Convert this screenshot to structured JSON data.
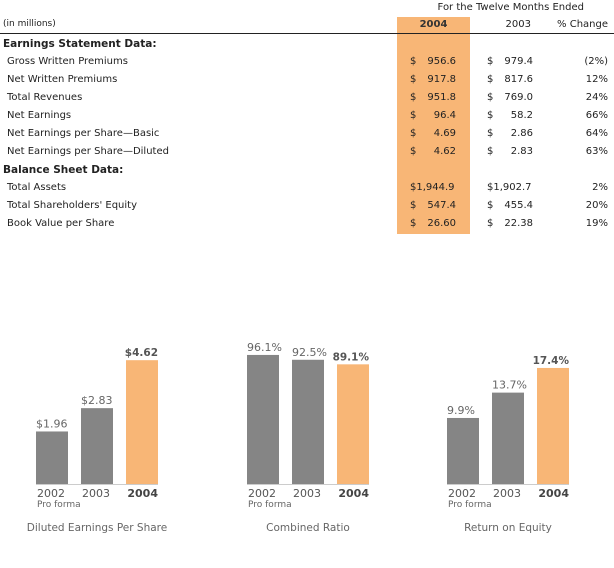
{
  "table": {
    "period_header": "For the Twelve Months Ended",
    "units_label": "(in millions)",
    "columns": {
      "y2004": "2004",
      "y2003": "2003",
      "change": "% Change"
    },
    "highlight_color": "#F8B676",
    "sections": [
      {
        "title": "Earnings Statement Data:",
        "rows": [
          {
            "label": "Gross Written Premiums",
            "v2004_cur": "$",
            "v2004": "956.6",
            "v2003_cur": "$",
            "v2003": "979.4",
            "change": "(2%)"
          },
          {
            "label": "Net Written Premiums",
            "v2004_cur": "$",
            "v2004": "917.8",
            "v2003_cur": "$",
            "v2003": "817.6",
            "change": "12%"
          },
          {
            "label": "Total Revenues",
            "v2004_cur": "$",
            "v2004": "951.8",
            "v2003_cur": "$",
            "v2003": "769.0",
            "change": "24%"
          },
          {
            "label": "Net Earnings",
            "v2004_cur": "$",
            "v2004": "96.4",
            "v2003_cur": "$",
            "v2003": "58.2",
            "change": "66%"
          },
          {
            "label": "Net Earnings per Share—Basic",
            "v2004_cur": "$",
            "v2004": "4.69",
            "v2003_cur": "$",
            "v2003": "2.86",
            "change": "64%"
          },
          {
            "label": "Net Earnings per Share—Diluted",
            "v2004_cur": "$",
            "v2004": "4.62",
            "v2003_cur": "$",
            "v2003": "2.83",
            "change": "63%"
          }
        ]
      },
      {
        "title": "Balance Sheet Data:",
        "rows": [
          {
            "label": "Total Assets",
            "v2004_cur": "$1,944.9",
            "v2004": "",
            "v2003_cur": "$1,902.7",
            "v2003": "",
            "change": "2%"
          },
          {
            "label": "Total Shareholders' Equity",
            "v2004_cur": "$",
            "v2004": "547.4",
            "v2003_cur": "$",
            "v2003": "455.4",
            "change": "20%"
          },
          {
            "label": "Book Value per Share",
            "v2004_cur": "$",
            "v2004": "26.60",
            "v2003_cur": "$",
            "v2003": "22.38",
            "change": "19%"
          }
        ]
      }
    ]
  },
  "chart_data": [
    {
      "type": "bar",
      "title": "Diluted Earnings Per Share",
      "categories": [
        "2002",
        "2003",
        "2004"
      ],
      "category_sublabels": [
        "Pro forma",
        "",
        ""
      ],
      "values": [
        1.96,
        2.83,
        4.62
      ],
      "value_labels": [
        "$1.96",
        "$2.83",
        "$4.62"
      ],
      "highlight_index": 2,
      "colors": {
        "bar": "#858585",
        "highlight": "#F8B676"
      },
      "xlabel": "",
      "ylabel": "",
      "ylim": [
        0,
        4.62
      ],
      "grid": false
    },
    {
      "type": "bar",
      "title": "Combined Ratio",
      "categories": [
        "2002",
        "2003",
        "2004"
      ],
      "category_sublabels": [
        "Pro forma",
        "",
        ""
      ],
      "values": [
        96.1,
        92.5,
        89.1
      ],
      "value_labels": [
        "96.1%",
        "92.5%",
        "89.1%"
      ],
      "highlight_index": 2,
      "colors": {
        "bar": "#858585",
        "highlight": "#F8B676"
      },
      "xlabel": "",
      "ylabel": "",
      "ylim": [
        0,
        96.1
      ],
      "grid": false
    },
    {
      "type": "bar",
      "title": "Return on Equity",
      "categories": [
        "2002",
        "2003",
        "2004"
      ],
      "category_sublabels": [
        "Pro forma",
        "",
        ""
      ],
      "values": [
        9.9,
        13.7,
        17.4
      ],
      "value_labels": [
        "9.9%",
        "13.7%",
        "17.4%"
      ],
      "highlight_index": 2,
      "colors": {
        "bar": "#858585",
        "highlight": "#F8B676"
      },
      "xlabel": "",
      "ylabel": "",
      "ylim": [
        0,
        17.4
      ],
      "grid": false
    }
  ]
}
